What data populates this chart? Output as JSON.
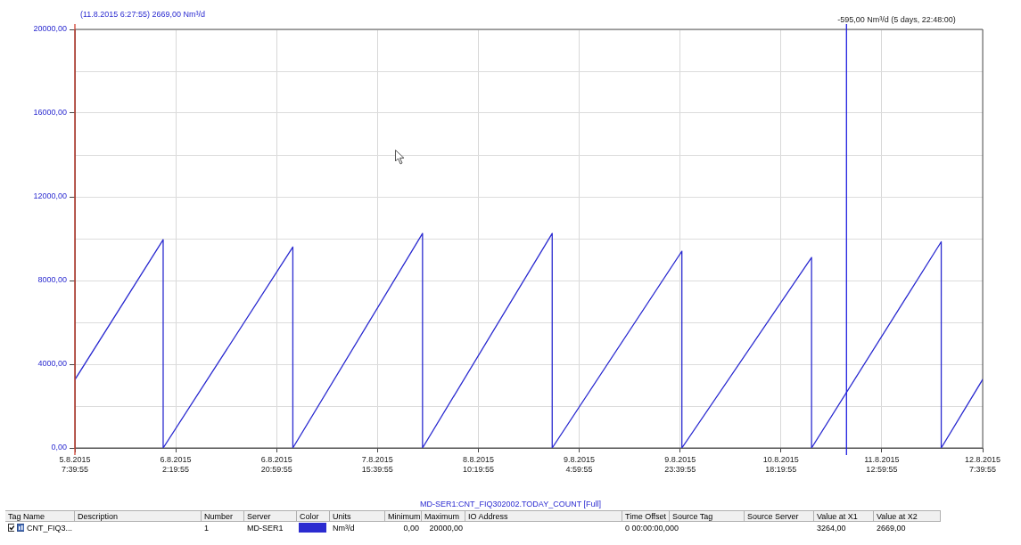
{
  "chart_data": {
    "type": "line",
    "series": [
      {
        "name": "CNT_FIQ3...",
        "color": "#2b2bd0",
        "x": [
          "2015-08-05T07:39:55",
          "2015-08-06T00:00",
          "2015-08-06T00:00",
          "2015-08-07T00:00",
          "2015-08-07T00:00",
          "2015-08-08T00:00",
          "2015-08-08T00:00",
          "2015-08-09T00:00",
          "2015-08-09T00:00",
          "2015-08-10T00:00",
          "2015-08-10T00:00",
          "2015-08-11T00:00",
          "2015-08-11T00:00",
          "2015-08-12T00:00",
          "2015-08-12T00:00",
          "2015-08-12T07:39:55"
        ],
        "values": [
          3264,
          9950,
          0,
          9600,
          0,
          10250,
          0,
          10250,
          0,
          9400,
          0,
          9100,
          0,
          9850,
          0,
          3270
        ]
      }
    ],
    "xlim": [
      "2015-08-05T07:39:55",
      "2015-08-12T07:39:55"
    ],
    "xticks": [
      {
        "value": "2015-08-05T07:39:55",
        "label": "5.8.2015 7:39:55"
      },
      {
        "value": "2015-08-06T02:19:55",
        "label": "6.8.2015 2:19:55"
      },
      {
        "value": "2015-08-06T20:59:55",
        "label": "6.8.2015 20:59:55"
      },
      {
        "value": "2015-08-07T15:39:55",
        "label": "7.8.2015 15:39:55"
      },
      {
        "value": "2015-08-08T10:19:55",
        "label": "8.8.2015 10:19:55"
      },
      {
        "value": "2015-08-09T04:59:55",
        "label": "9.8.2015 4:59:55"
      },
      {
        "value": "2015-08-09T23:39:55",
        "label": "9.8.2015 23:39:55"
      },
      {
        "value": "2015-08-10T18:19:55",
        "label": "10.8.2015 18:19:55"
      },
      {
        "value": "2015-08-11T12:59:55",
        "label": "11.8.2015 12:59:55"
      },
      {
        "value": "2015-08-12T07:39:55",
        "label": "12.8.2015 7:39:55"
      }
    ],
    "ylim": [
      0,
      20000
    ],
    "yticks": [
      {
        "value": 0,
        "label": "0,00"
      },
      {
        "value": 2000,
        "label": null
      },
      {
        "value": 4000,
        "label": "4000,00"
      },
      {
        "value": 6000,
        "label": null
      },
      {
        "value": 8000,
        "label": "8000,00"
      },
      {
        "value": 10000,
        "label": null
      },
      {
        "value": 12000,
        "label": "12000,00"
      },
      {
        "value": 14000,
        "label": null
      },
      {
        "value": 16000,
        "label": "16000,00"
      },
      {
        "value": 18000,
        "label": null
      },
      {
        "value": 20000,
        "label": "20000,00"
      }
    ],
    "grid": true,
    "legend": "bottom",
    "marker": "none",
    "line_style": "solid",
    "ref_lines": [
      {
        "axis": "x",
        "value": "2015-08-05T07:39:55",
        "color": "#d04030"
      },
      {
        "axis": "x",
        "value": "2015-08-11T06:27:55",
        "color": "#2020e0"
      }
    ],
    "annotations": [
      "(11.8.2015 6:27:55) 2669,00 Nm³/d",
      "MD-SER1:CNT_FIQ302002.TODAY_COUNT [Full]",
      "-595,00 Nm³/d (5 days, 22:48:00)",
      "Tag Name",
      "Description",
      "Number",
      "Server",
      "Color",
      "Units",
      "Minimum",
      "Maximum",
      "IO Address",
      "Time Offset",
      "Source Tag",
      "Source Server",
      "Value at X1",
      "Value at X2",
      "1",
      "MD-SER1",
      "Nm³/d",
      "0,00",
      "20000,00",
      "0 00:00:00,000",
      "3264,00",
      "2669,00"
    ]
  }
}
